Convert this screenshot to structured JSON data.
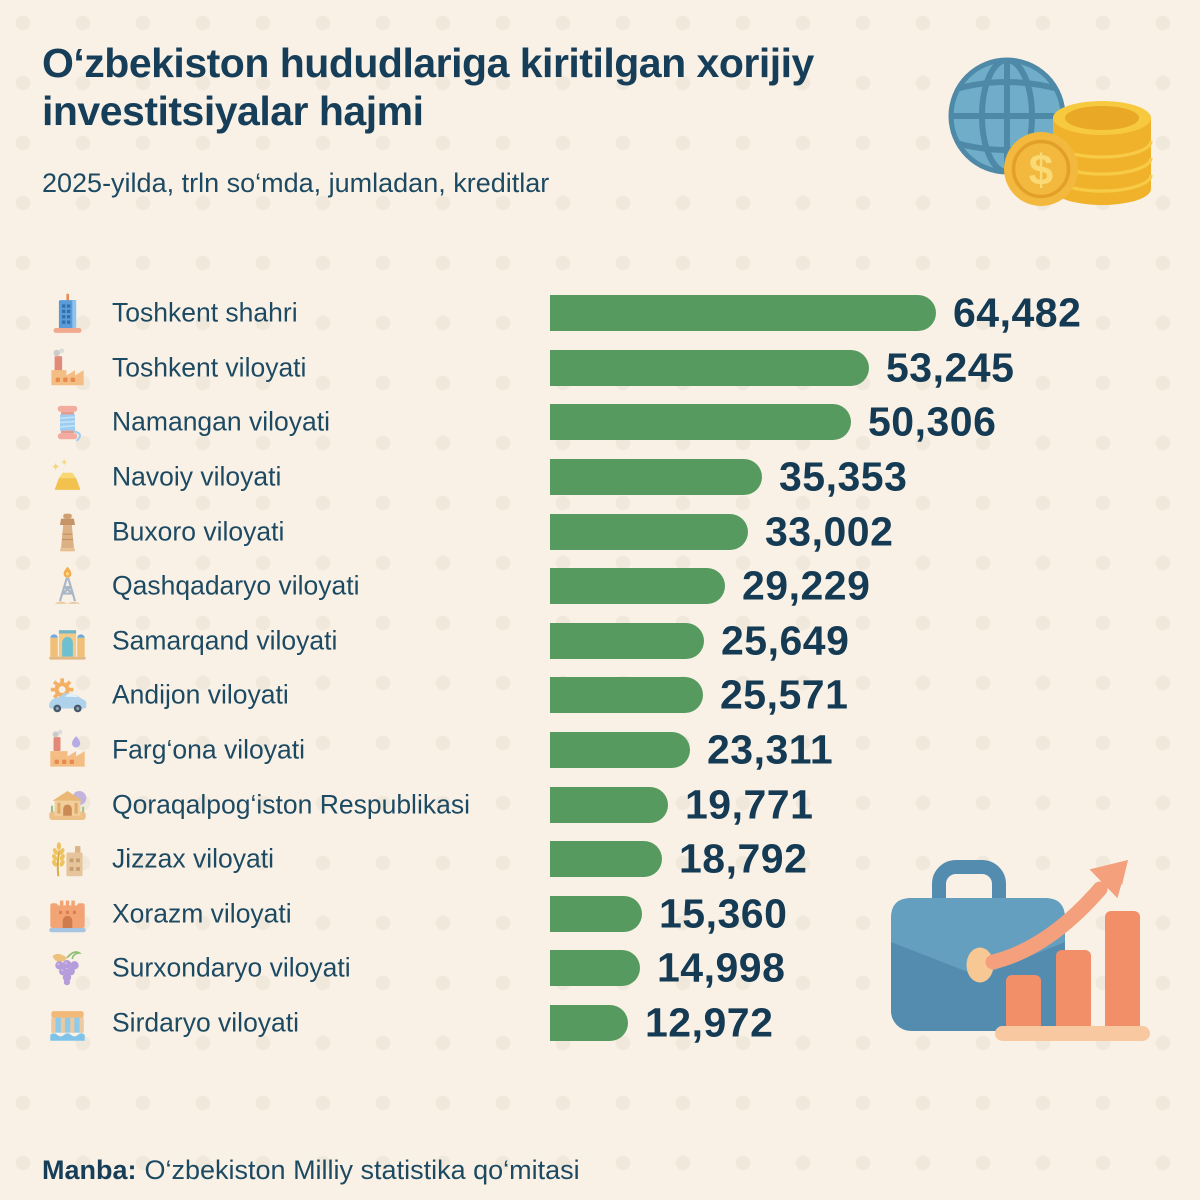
{
  "title": "O‘zbekiston hududlariga kiritilgan xorijiy investitsiyalar hajmi",
  "subtitle": "2025-yilda, trln so‘mda, jumladan, kreditlar",
  "source": {
    "label": "Manba:",
    "text": "O‘zbekiston Milliy statistika qo‘mitasi"
  },
  "hero_icon": "globe-coins-icon",
  "footer_icon": "briefcase-growth-icon",
  "colors": {
    "background": "#f9f1e6",
    "dot_pattern": "#f0e8da",
    "bar_green": "#579a5f",
    "navy_text": "#163e59"
  },
  "chart_data": {
    "type": "bar",
    "orientation": "horizontal",
    "title": "O‘zbekiston hududlariga kiritilgan xorijiy investitsiyalar hajmi",
    "subtitle": "2025-yilda, trln so‘mda, jumladan, kreditlar",
    "unit": "trln so‘m",
    "year": "2025",
    "max_value": 64482,
    "grid": false,
    "legend": false,
    "categories": [
      "Toshkent shahri",
      "Toshkent viloyati",
      "Namangan viloyati",
      "Navoiy viloyati",
      "Buxoro viloyati",
      "Qashqadaryo viloyati",
      "Samarqand viloyati",
      "Andijon viloyati",
      "Farg‘ona viloyati",
      "Qoraqalpog‘iston Respublikasi",
      "Jizzax viloyati",
      "Xorazm viloyati",
      "Surxondaryo viloyati",
      "Sirdaryo viloyati"
    ],
    "values": [
      64482,
      53245,
      50306,
      35353,
      33002,
      29229,
      25649,
      25571,
      23311,
      19771,
      18792,
      15360,
      14998,
      12972
    ],
    "value_labels": [
      "64,482",
      "53,245",
      "50,306",
      "35,353",
      "33,002",
      "29,229",
      "25,649",
      "25,571",
      "23,311",
      "19,771",
      "18,792",
      "15,360",
      "14,998",
      "12,972"
    ],
    "icons": [
      "city-building-icon",
      "factory-icon",
      "thread-spool-icon",
      "gold-bar-icon",
      "minaret-icon",
      "oil-derrick-icon",
      "madrasa-icon",
      "car-gear-icon",
      "oil-factory-icon",
      "museum-icon",
      "wheat-mill-icon",
      "fortress-icon",
      "grapes-icon",
      "dam-icon"
    ]
  }
}
